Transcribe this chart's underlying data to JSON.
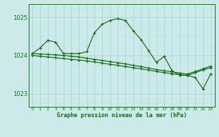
{
  "title": "Graphe pression niveau de la mer (hPa)",
  "background_color": "#cceaea",
  "grid_color_major": "#aad4d4",
  "grid_color_minor": "#bde0e0",
  "line_color": "#1a6b1a",
  "xlim": [
    -0.5,
    23.5
  ],
  "ylim": [
    1022.65,
    1025.35
  ],
  "yticks": [
    1023,
    1024,
    1025
  ],
  "xticks": [
    0,
    1,
    2,
    3,
    4,
    5,
    6,
    7,
    8,
    9,
    10,
    11,
    12,
    13,
    14,
    15,
    16,
    17,
    18,
    19,
    20,
    21,
    22,
    23
  ],
  "series": [
    {
      "x": [
        0,
        1,
        2,
        3,
        4,
        5,
        6,
        7,
        8,
        9,
        10,
        11,
        12,
        13,
        14,
        15,
        16,
        17,
        18,
        19,
        20,
        21,
        22,
        23
      ],
      "y": [
        1024.05,
        1024.2,
        1024.4,
        1024.35,
        1024.05,
        1024.05,
        1024.05,
        1024.1,
        1024.6,
        1024.82,
        1024.92,
        1024.97,
        1024.92,
        1024.65,
        1024.42,
        1024.12,
        1023.82,
        1023.98,
        1023.6,
        1023.48,
        1023.48,
        1023.42,
        1023.12,
        1023.52
      ]
    },
    {
      "x": [
        0,
        1,
        2,
        3,
        4,
        5,
        6,
        7,
        8,
        9,
        10,
        11,
        12,
        13,
        14,
        15,
        16,
        17,
        18,
        19,
        20,
        21,
        22,
        23
      ],
      "y": [
        1024.0,
        1023.98,
        1023.96,
        1023.94,
        1023.92,
        1023.9,
        1023.88,
        1023.86,
        1023.83,
        1023.8,
        1023.77,
        1023.74,
        1023.71,
        1023.68,
        1023.65,
        1023.62,
        1023.58,
        1023.55,
        1023.52,
        1023.5,
        1023.48,
        1023.55,
        1023.62,
        1023.68
      ]
    },
    {
      "x": [
        0,
        1,
        2,
        3,
        4,
        5,
        6,
        7,
        8,
        9,
        10,
        11,
        12,
        13,
        14,
        15,
        16,
        17,
        18,
        19,
        20,
        21,
        22,
        23
      ],
      "y": [
        1024.05,
        1024.04,
        1024.03,
        1024.02,
        1024.0,
        1023.98,
        1023.96,
        1023.93,
        1023.9,
        1023.87,
        1023.84,
        1023.81,
        1023.78,
        1023.74,
        1023.71,
        1023.67,
        1023.63,
        1023.6,
        1023.57,
        1023.54,
        1023.51,
        1023.58,
        1023.65,
        1023.72
      ]
    }
  ]
}
